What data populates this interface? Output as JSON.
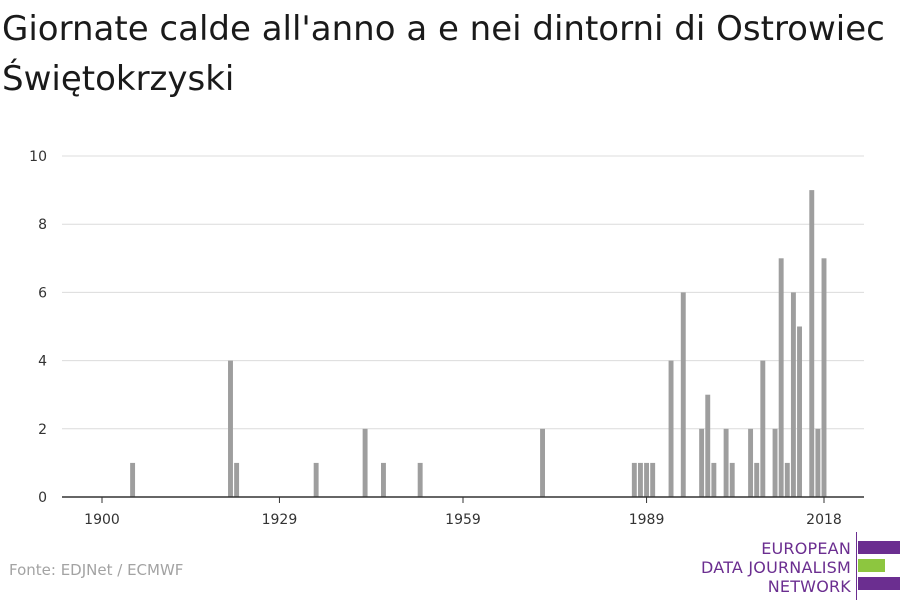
{
  "page": {
    "title": "Giornate calde all'anno a e nei dintorni di Ostrowiec Świętokrzyski",
    "source": "Fonte: EDJNet / ECMWF"
  },
  "logo": {
    "lines": [
      "EUROPEAN",
      "DATA JOURNALISM",
      "NETWORK"
    ],
    "colors": {
      "purple": "#6b2e90",
      "green": "#8dc63f"
    }
  },
  "chart_data": {
    "type": "bar",
    "title": "Giornate calde all'anno a e nei dintorni di Ostrowiec Świętokrzyski",
    "xlabel": "",
    "ylabel": "",
    "x_ticks": [
      1900,
      1929,
      1959,
      1989,
      2018
    ],
    "y_ticks": [
      0,
      2,
      4,
      6,
      8,
      10
    ],
    "xlim": [
      1900,
      2018
    ],
    "ylim": [
      0,
      10
    ],
    "grid": true,
    "bar_color": "#9e9e9e",
    "points": [
      {
        "x": 1905,
        "y": 1
      },
      {
        "x": 1921,
        "y": 4
      },
      {
        "x": 1922,
        "y": 1
      },
      {
        "x": 1935,
        "y": 1
      },
      {
        "x": 1943,
        "y": 2
      },
      {
        "x": 1946,
        "y": 1
      },
      {
        "x": 1952,
        "y": 1
      },
      {
        "x": 1972,
        "y": 2
      },
      {
        "x": 1987,
        "y": 1
      },
      {
        "x": 1988,
        "y": 1
      },
      {
        "x": 1989,
        "y": 1
      },
      {
        "x": 1990,
        "y": 1
      },
      {
        "x": 1993,
        "y": 4
      },
      {
        "x": 1995,
        "y": 6
      },
      {
        "x": 1998,
        "y": 2
      },
      {
        "x": 1999,
        "y": 3
      },
      {
        "x": 2000,
        "y": 1
      },
      {
        "x": 2002,
        "y": 2
      },
      {
        "x": 2003,
        "y": 1
      },
      {
        "x": 2006,
        "y": 2
      },
      {
        "x": 2007,
        "y": 1
      },
      {
        "x": 2008,
        "y": 4
      },
      {
        "x": 2010,
        "y": 2
      },
      {
        "x": 2011,
        "y": 7
      },
      {
        "x": 2012,
        "y": 1
      },
      {
        "x": 2013,
        "y": 6
      },
      {
        "x": 2014,
        "y": 5
      },
      {
        "x": 2016,
        "y": 9
      },
      {
        "x": 2017,
        "y": 2
      },
      {
        "x": 2018,
        "y": 7
      }
    ]
  }
}
